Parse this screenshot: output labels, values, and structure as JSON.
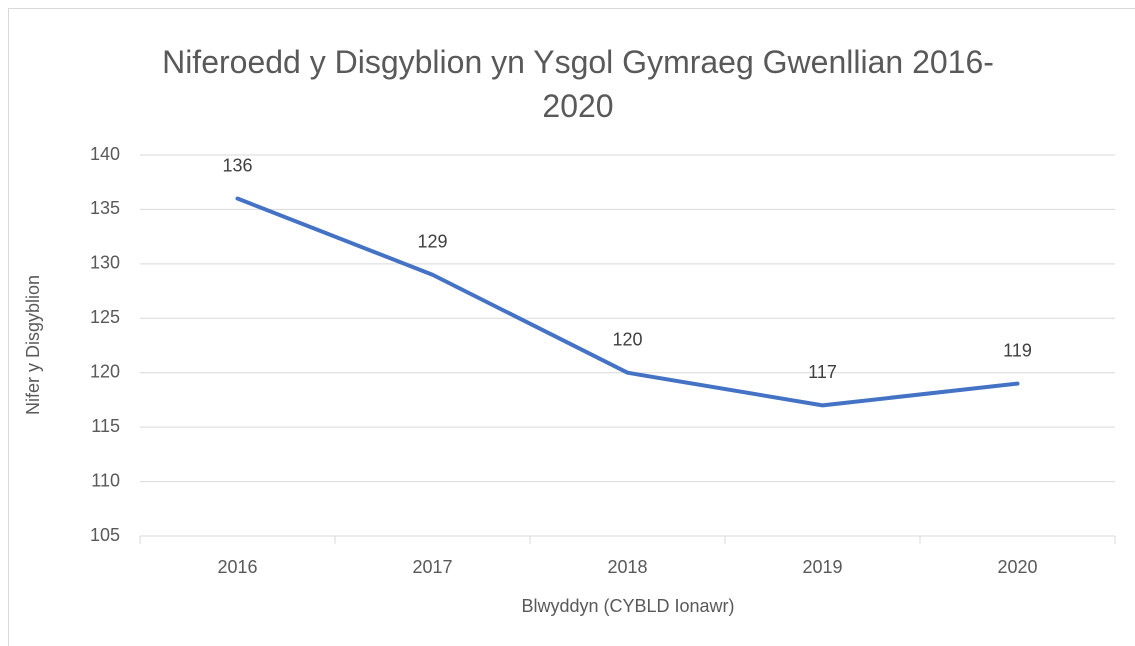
{
  "chart_data": {
    "type": "line",
    "title": "Niferoedd y Disgyblion yn Ysgol Gymraeg Gwenllian 2016-2020",
    "x_label": "Blwyddyn (CYBLD Ionawr)",
    "y_label": "Nifer y Disgyblion",
    "categories": [
      "2016",
      "2017",
      "2018",
      "2019",
      "2020"
    ],
    "values": [
      136,
      129,
      120,
      117,
      119
    ],
    "color": "#4472c4",
    "ylim": [
      105,
      140
    ],
    "yticks": [
      105,
      110,
      115,
      120,
      125,
      130,
      135,
      140
    ],
    "grid": true
  }
}
